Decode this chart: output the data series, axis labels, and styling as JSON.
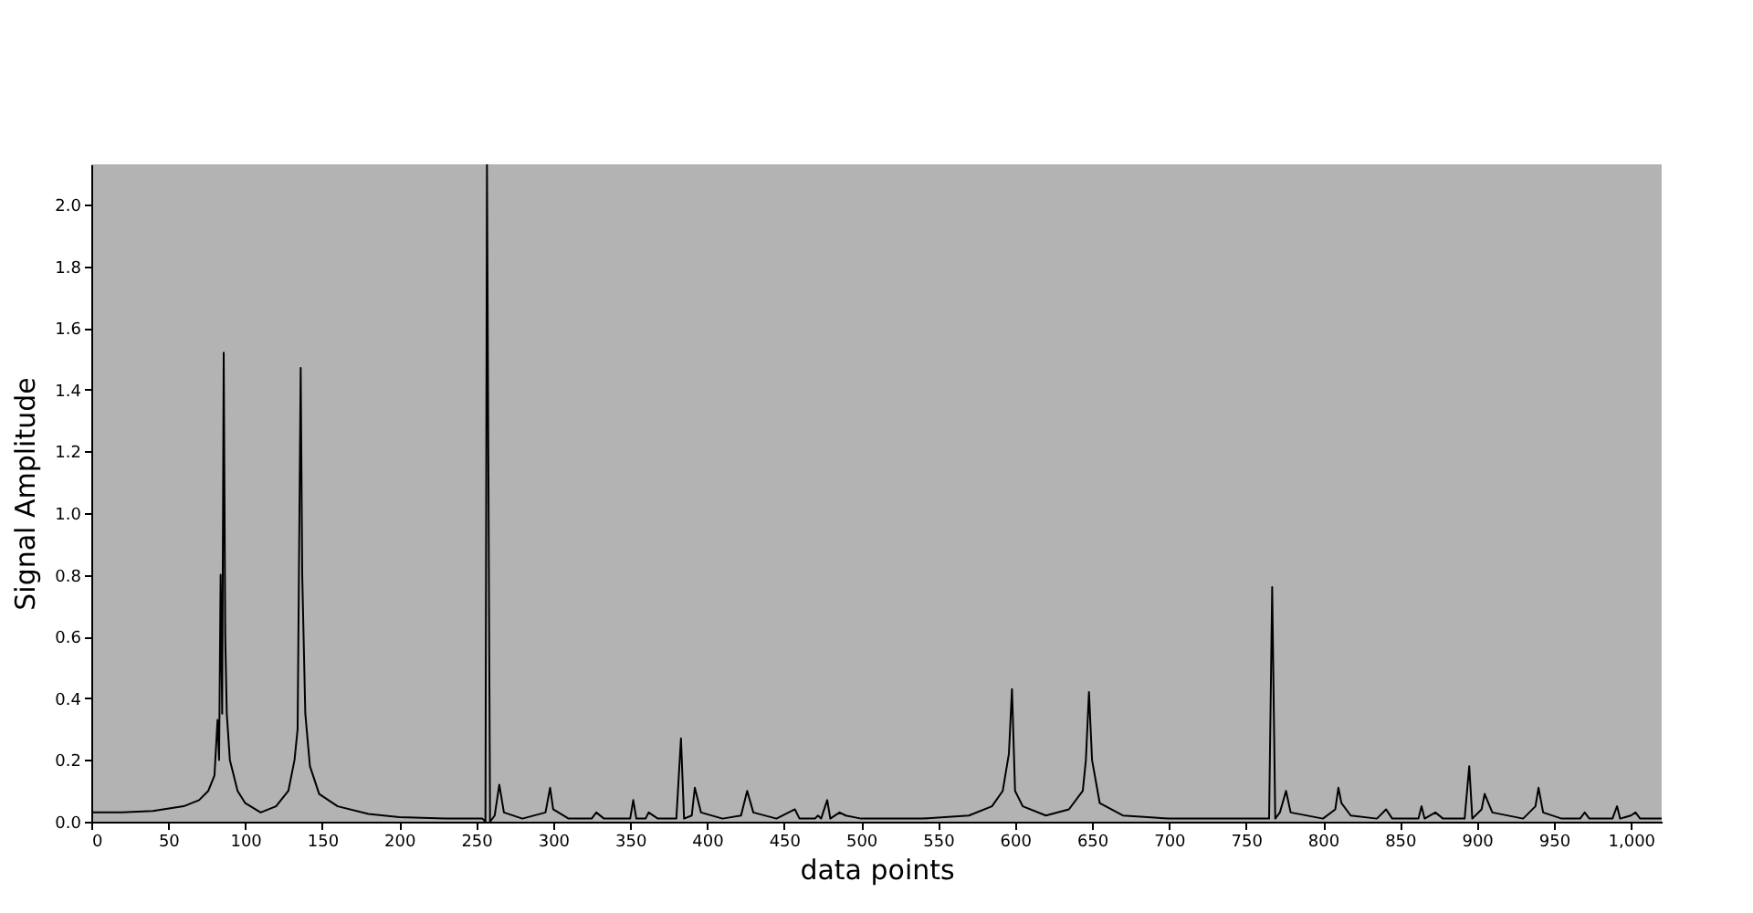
{
  "chart_data": {
    "type": "line",
    "xlabel": "data points",
    "ylabel": "Signal Amplitude",
    "color": "#000000",
    "x": [
      0,
      20,
      40,
      60,
      70,
      76,
      80,
      82,
      83,
      84,
      85,
      86,
      87,
      88,
      90,
      95,
      100,
      110,
      120,
      128,
      132,
      134,
      136,
      137,
      139,
      142,
      148,
      160,
      180,
      200,
      230,
      254,
      256,
      257,
      259,
      262,
      265,
      268,
      280,
      295,
      298,
      300,
      310,
      325,
      328,
      333,
      350,
      352,
      354,
      360,
      362,
      368,
      380,
      383,
      385,
      390,
      392,
      396,
      410,
      422,
      426,
      430,
      445,
      457,
      460,
      470,
      472,
      474,
      478,
      480,
      486,
      490,
      500,
      540,
      570,
      585,
      592,
      596,
      598,
      600,
      605,
      620,
      635,
      644,
      646,
      648,
      650,
      655,
      670,
      700,
      765,
      767,
      769,
      772,
      776,
      779,
      800,
      808,
      810,
      812,
      818,
      835,
      841,
      845,
      862,
      864,
      866,
      873,
      878,
      892,
      895,
      897,
      903,
      905,
      910,
      930,
      938,
      940,
      943,
      955,
      967,
      970,
      973,
      988,
      991,
      993,
      1000,
      1003,
      1006,
      1020
    ],
    "values": [
      0.03,
      0.03,
      0.035,
      0.05,
      0.07,
      0.1,
      0.15,
      0.33,
      0.2,
      0.8,
      0.35,
      1.52,
      0.6,
      0.35,
      0.2,
      0.1,
      0.06,
      0.03,
      0.05,
      0.1,
      0.2,
      0.3,
      1.47,
      0.8,
      0.35,
      0.18,
      0.09,
      0.05,
      0.025,
      0.015,
      0.01,
      0.01,
      0.0,
      2.13,
      0.0,
      0.02,
      0.12,
      0.03,
      0.01,
      0.03,
      0.11,
      0.04,
      0.01,
      0.01,
      0.03,
      0.01,
      0.01,
      0.07,
      0.01,
      0.01,
      0.03,
      0.01,
      0.01,
      0.27,
      0.01,
      0.02,
      0.11,
      0.03,
      0.01,
      0.02,
      0.1,
      0.03,
      0.01,
      0.04,
      0.01,
      0.01,
      0.02,
      0.01,
      0.07,
      0.01,
      0.03,
      0.02,
      0.01,
      0.01,
      0.02,
      0.05,
      0.1,
      0.22,
      0.43,
      0.1,
      0.05,
      0.02,
      0.04,
      0.1,
      0.2,
      0.42,
      0.2,
      0.06,
      0.02,
      0.01,
      0.01,
      0.76,
      0.01,
      0.03,
      0.1,
      0.03,
      0.01,
      0.04,
      0.11,
      0.06,
      0.02,
      0.01,
      0.04,
      0.01,
      0.01,
      0.05,
      0.01,
      0.03,
      0.01,
      0.01,
      0.18,
      0.01,
      0.04,
      0.09,
      0.03,
      0.01,
      0.05,
      0.11,
      0.03,
      0.01,
      0.01,
      0.03,
      0.01,
      0.01,
      0.05,
      0.01,
      0.02,
      0.03,
      0.01,
      0.01
    ],
    "xlim": [
      0,
      1020
    ],
    "ylim": [
      0,
      2.13
    ],
    "xticks": [
      0,
      50,
      100,
      150,
      200,
      250,
      300,
      350,
      400,
      450,
      500,
      550,
      600,
      650,
      700,
      750,
      800,
      850,
      900,
      950,
      {
        "value": 1000,
        "label": "1,000"
      }
    ],
    "yticks": [
      {
        "value": 0,
        "label": "0.0"
      },
      {
        "value": 0.2,
        "label": "0.2"
      },
      {
        "value": 0.4,
        "label": "0.4"
      },
      {
        "value": 0.6,
        "label": "0.6"
      },
      {
        "value": 0.8,
        "label": "0.8"
      },
      {
        "value": 1,
        "label": "1.0"
      },
      {
        "value": 1.2,
        "label": "1.2"
      },
      {
        "value": 1.4,
        "label": "1.4"
      },
      {
        "value": 1.6,
        "label": "1.6"
      },
      {
        "value": 1.8,
        "label": "1.8"
      },
      {
        "value": 2,
        "label": "2.0"
      }
    ]
  }
}
